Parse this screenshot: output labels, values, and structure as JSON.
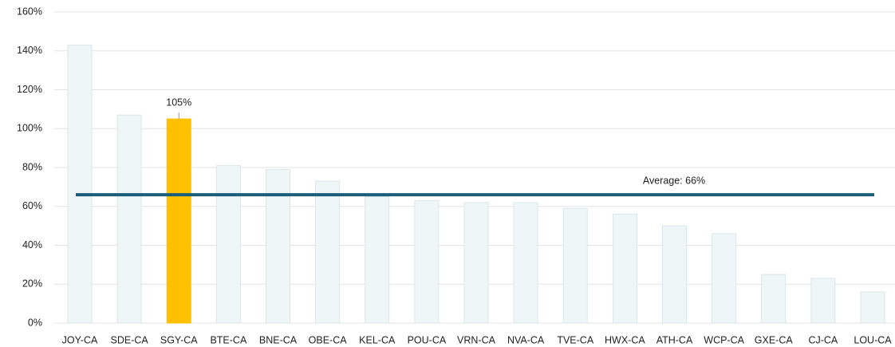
{
  "chart_data": {
    "type": "bar",
    "categories": [
      "JOY-CA",
      "SDE-CA",
      "SGY-CA",
      "BTE-CA",
      "BNE-CA",
      "OBE-CA",
      "KEL-CA",
      "POU-CA",
      "VRN-CA",
      "NVA-CA",
      "TVE-CA",
      "HWX-CA",
      "ATH-CA",
      "WCP-CA",
      "GXE-CA",
      "CJ-CA",
      "LOU-CA"
    ],
    "values": [
      143,
      107,
      105,
      81,
      79,
      73,
      65,
      63,
      62,
      62,
      59,
      56,
      50,
      46,
      25,
      23,
      16
    ],
    "value_labels": [
      null,
      null,
      "105%",
      null,
      null,
      null,
      null,
      null,
      null,
      null,
      null,
      null,
      null,
      null,
      null,
      null,
      null
    ],
    "colors": [
      "#eef6f8",
      "#eef6f8",
      "#ffc000",
      "#eef6f8",
      "#eef6f8",
      "#eef6f8",
      "#eef6f8",
      "#eef6f8",
      "#eef6f8",
      "#eef6f8",
      "#eef6f8",
      "#eef6f8",
      "#eef6f8",
      "#eef6f8",
      "#eef6f8",
      "#eef6f8",
      "#eef6f8"
    ],
    "ylim": [
      0,
      160
    ],
    "yticks": [
      {
        "value": 0,
        "label": "0%"
      },
      {
        "value": 20,
        "label": "20%"
      },
      {
        "value": 40,
        "label": "40%"
      },
      {
        "value": 60,
        "label": "60%"
      },
      {
        "value": 80,
        "label": "80%"
      },
      {
        "value": 100,
        "label": "100%"
      },
      {
        "value": 120,
        "label": "120%"
      },
      {
        "value": 140,
        "label": "140%"
      },
      {
        "value": 160,
        "label": "160%"
      }
    ],
    "grid": true,
    "average": {
      "value": 66,
      "label": "Average: 66%",
      "color": "#1b5e7b"
    }
  }
}
